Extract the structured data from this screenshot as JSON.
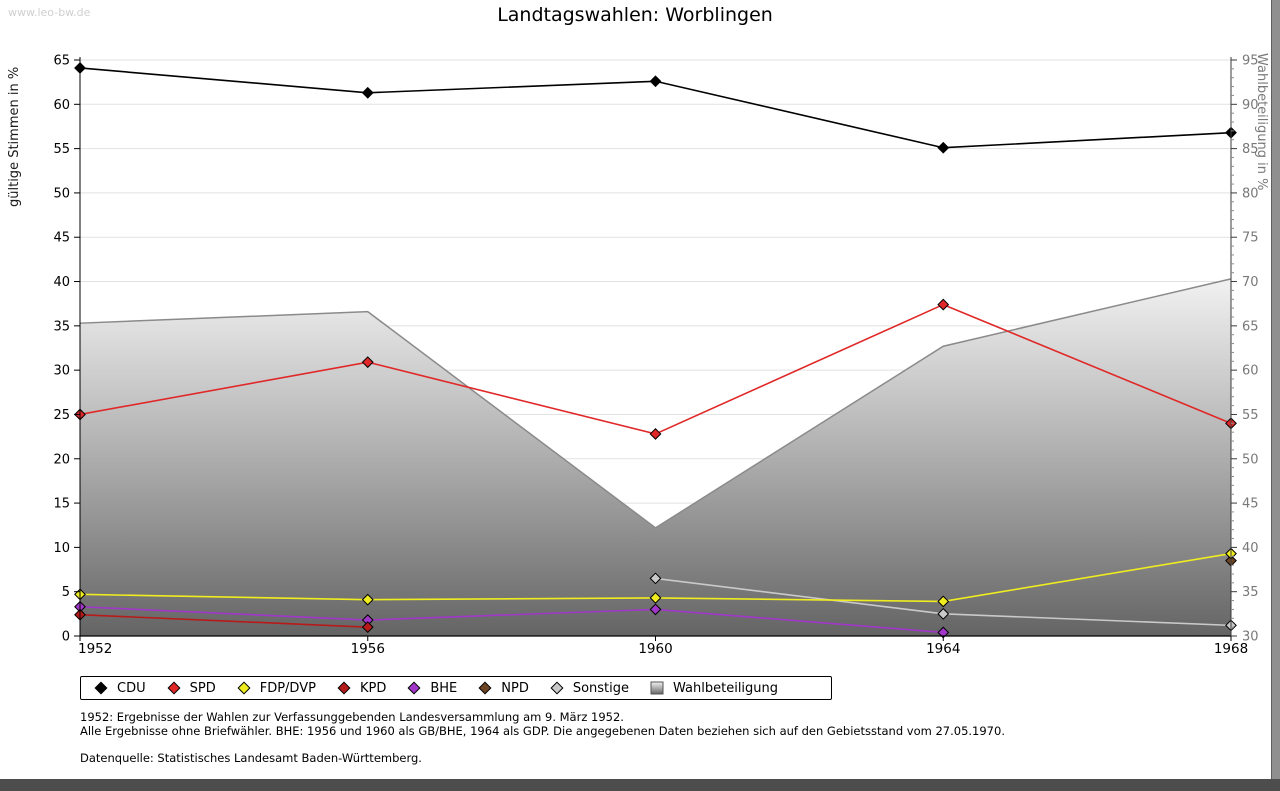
{
  "watermark": "www.leo-bw.de",
  "title": "Landtagswahlen: Worblingen",
  "chart_data": {
    "type": "line",
    "x": [
      1952,
      1956,
      1960,
      1964,
      1968
    ],
    "left_axis": {
      "label": "gültige Stimmen in %",
      "min": 0,
      "max": 65,
      "tick_step": 5
    },
    "right_axis": {
      "label": "Wahlbeteiligung in %",
      "min": 30,
      "max": 95,
      "tick_step": 5,
      "minor_step": 1
    },
    "grid": true,
    "legend_position": "bottom",
    "series": [
      {
        "name": "CDU",
        "color": "#000000",
        "axis": "left",
        "marker": "diamond",
        "values": [
          64.1,
          61.3,
          62.6,
          55.1,
          56.8
        ]
      },
      {
        "name": "SPD",
        "color": "#e02828",
        "axis": "left",
        "marker": "diamond",
        "values": [
          25.0,
          30.9,
          22.8,
          37.4,
          24.0
        ]
      },
      {
        "name": "FDP/DVP",
        "color": "#efec20",
        "axis": "left",
        "marker": "diamond",
        "values": [
          4.7,
          4.1,
          4.3,
          3.9,
          9.3
        ]
      },
      {
        "name": "KPD",
        "color": "#b81a1a",
        "axis": "left",
        "marker": "diamond",
        "values": [
          2.4,
          1.0,
          null,
          null,
          null
        ]
      },
      {
        "name": "BHE",
        "color": "#a137c9",
        "axis": "left",
        "marker": "diamond",
        "values": [
          3.3,
          1.8,
          3.0,
          0.4,
          null
        ]
      },
      {
        "name": "NPD",
        "color": "#6e4523",
        "axis": "left",
        "marker": "diamond",
        "values": [
          null,
          null,
          null,
          null,
          8.5
        ]
      },
      {
        "name": "Sonstige",
        "color": "#c9c9c9",
        "axis": "left",
        "marker": "diamond",
        "values": [
          null,
          null,
          6.5,
          2.5,
          1.2
        ]
      },
      {
        "name": "Wahlbeteiligung",
        "type": "area",
        "axis": "right",
        "marker": "none",
        "values": [
          65.3,
          66.6,
          42.2,
          62.7,
          70.3
        ]
      }
    ]
  },
  "footnotes": [
    "1952: Ergebnisse der Wahlen zur Verfassunggebenden Landesversammlung am 9. März 1952.",
    "Alle Ergebnisse ohne Briefwähler. BHE: 1956 und 1960 als GB/BHE, 1964 als GDP. Die angegebenen Daten beziehen sich auf den Gebietsstand vom 27.05.1970.",
    "Datenquelle: Statistisches Landesamt Baden-Württemberg."
  ]
}
